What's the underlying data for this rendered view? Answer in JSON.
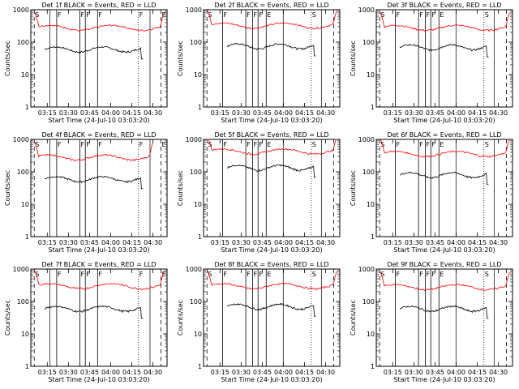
{
  "chart_data": [
    {
      "type": "line",
      "title": "Det 1f BLACK = Events, RED = LLD",
      "xlabel": "Start Time (24-Jul-10 03:03:20)",
      "ylabel": "Counts/sec",
      "xtick_labels": [
        "03:15",
        "03:30",
        "03:45",
        "04:00",
        "04:15",
        "04:30"
      ],
      "ytick_labels": [
        "1",
        "10",
        "100",
        "1000"
      ],
      "yscale": "log",
      "ylim": [
        1,
        1000
      ],
      "annotations": [
        "S",
        "F",
        "F",
        "F",
        "F",
        "F",
        "E",
        "S"
      ],
      "series": [
        {
          "name": "BLACK = Events",
          "color": "#000000",
          "start": "03:13",
          "end": "04:23",
          "mean": 60
        },
        {
          "name": "RED = LLD",
          "color": "#ff0000",
          "start": "03:06",
          "end": "04:38",
          "mean": 280
        }
      ]
    },
    {
      "type": "line",
      "title": "Det 2f BLACK = Events, RED = LLD",
      "xlabel": "Start Time (24-Jul-10 03:03:20)",
      "ylabel": "Counts/sec",
      "xtick_labels": [
        "03:15",
        "03:30",
        "03:45",
        "04:00",
        "04:15",
        "04:30"
      ],
      "ytick_labels": [
        "1",
        "10",
        "100",
        "1000"
      ],
      "yscale": "log",
      "ylim": [
        1,
        1000
      ],
      "annotations": [
        "S",
        "F",
        "F",
        "F",
        "F",
        "E",
        "S"
      ],
      "series": [
        {
          "name": "BLACK = Events",
          "color": "#000000",
          "start": "03:20",
          "end": "04:23",
          "mean": 75
        },
        {
          "name": "RED = LLD",
          "color": "#ff0000",
          "start": "03:06",
          "end": "04:38",
          "mean": 330
        }
      ]
    },
    {
      "type": "line",
      "title": "Det 3f BLACK = Events, RED = LLD",
      "xlabel": "Start Time (24-Jul-10 03:03:20)",
      "ylabel": "Counts/sec",
      "xtick_labels": [
        "03:15",
        "03:30",
        "03:45",
        "04:00",
        "04:15",
        "04:30"
      ],
      "ytick_labels": [
        "1",
        "10",
        "100",
        "1000"
      ],
      "yscale": "log",
      "ylim": [
        1,
        1000
      ],
      "annotations": [
        "S",
        "F",
        "F",
        "F",
        "F",
        "E",
        "S"
      ],
      "series": [
        {
          "name": "BLACK = Events",
          "color": "#000000",
          "start": "03:20",
          "end": "04:23",
          "mean": 70
        },
        {
          "name": "RED = LLD",
          "color": "#ff0000",
          "start": "03:06",
          "end": "04:38",
          "mean": 280
        }
      ]
    },
    {
      "type": "line",
      "title": "Det 4f BLACK = Events, RED = LLD",
      "xlabel": "Start Time (24-Jul-10 03:03:20)",
      "ylabel": "Counts/sec",
      "xtick_labels": [
        "03:15",
        "03:30",
        "03:45",
        "04:00",
        "04:15",
        "04:30"
      ],
      "ytick_labels": [
        "1",
        "10",
        "100",
        "1000"
      ],
      "yscale": "log",
      "ylim": [
        1,
        1000
      ],
      "annotations": [
        "S",
        "F",
        "F",
        "F",
        "F",
        "F",
        "E",
        "S"
      ],
      "series": [
        {
          "name": "BLACK = Events",
          "color": "#000000",
          "start": "03:13",
          "end": "04:23",
          "mean": 60
        },
        {
          "name": "RED = LLD",
          "color": "#ff0000",
          "start": "03:06",
          "end": "04:30",
          "mean": 280
        }
      ]
    },
    {
      "type": "line",
      "title": "Det 5f BLACK = Events, RED = LLD",
      "xlabel": "Start Time (24-Jul-10 03:03:20)",
      "ylabel": "Counts/sec",
      "xtick_labels": [
        "03:15",
        "03:30",
        "03:45",
        "04:00",
        "04:15",
        "04:30"
      ],
      "ytick_labels": [
        "1",
        "10",
        "100",
        "1000"
      ],
      "yscale": "log",
      "ylim": [
        1,
        1000
      ],
      "annotations": [
        "S",
        "F",
        "F",
        "F",
        "F",
        "E",
        "S"
      ],
      "series": [
        {
          "name": "BLACK = Events",
          "color": "#000000",
          "start": "03:20",
          "end": "04:23",
          "mean": 135
        },
        {
          "name": "RED = LLD",
          "color": "#ff0000",
          "start": "03:06",
          "end": "04:38",
          "mean": 430
        }
      ]
    },
    {
      "type": "line",
      "title": "Det 6f BLACK = Events, RED = LLD",
      "xlabel": "Start Time (24-Jul-10 03:03:20)",
      "ylabel": "Counts/sec",
      "xtick_labels": [
        "03:15",
        "03:30",
        "03:45",
        "04:00",
        "04:15",
        "04:30"
      ],
      "ytick_labels": [
        "1",
        "10",
        "100",
        "1000"
      ],
      "yscale": "log",
      "ylim": [
        1,
        1000
      ],
      "annotations": [
        "S",
        "F",
        "F",
        "F",
        "F",
        "E",
        "S"
      ],
      "series": [
        {
          "name": "BLACK = Events",
          "color": "#000000",
          "start": "03:20",
          "end": "04:23",
          "mean": 80
        },
        {
          "name": "RED = LLD",
          "color": "#ff0000",
          "start": "03:06",
          "end": "04:38",
          "mean": 360
        }
      ]
    },
    {
      "type": "line",
      "title": "Det 7f BLACK = Events, RED = LLD",
      "xlabel": "Start Time (24-Jul-10 03:03:20)",
      "ylabel": "Counts/sec",
      "xtick_labels": [
        "03:15",
        "03:30",
        "03:45",
        "04:00",
        "04:15",
        "04:30"
      ],
      "ytick_labels": [
        "1",
        "10",
        "100",
        "1000"
      ],
      "yscale": "log",
      "ylim": [
        1,
        1000
      ],
      "annotations": [
        "S",
        "F",
        "F",
        "F",
        "F",
        "F",
        "E",
        "S"
      ],
      "series": [
        {
          "name": "BLACK = Events",
          "color": "#000000",
          "start": "03:13",
          "end": "04:23",
          "mean": 60
        },
        {
          "name": "RED = LLD",
          "color": "#ff0000",
          "start": "03:06",
          "end": "04:38",
          "mean": 300
        }
      ]
    },
    {
      "type": "line",
      "title": "Det 8f BLACK = Events, RED = LLD",
      "xlabel": "Start Time (24-Jul-10 03:03:20)",
      "ylabel": "Counts/sec",
      "xtick_labels": [
        "03:15",
        "03:30",
        "03:45",
        "04:00",
        "04:15",
        "04:30"
      ],
      "ytick_labels": [
        "1",
        "10",
        "100",
        "1000"
      ],
      "yscale": "log",
      "ylim": [
        1,
        1000
      ],
      "annotations": [
        "S",
        "F",
        "F",
        "F",
        "F",
        "E",
        "S"
      ],
      "series": [
        {
          "name": "BLACK = Events",
          "color": "#000000",
          "start": "03:20",
          "end": "04:23",
          "mean": 70
        },
        {
          "name": "RED = LLD",
          "color": "#ff0000",
          "start": "03:06",
          "end": "04:38",
          "mean": 300
        }
      ]
    },
    {
      "type": "line",
      "title": "Det 9f BLACK = Events, RED = LLD",
      "xlabel": "Start Time (24-Jul-10 03:03:20)",
      "ylabel": "Counts/sec",
      "xtick_labels": [
        "03:15",
        "03:30",
        "03:45",
        "04:00",
        "04:15",
        "04:30"
      ],
      "ytick_labels": [
        "1",
        "10",
        "100",
        "1000"
      ],
      "yscale": "log",
      "ylim": [
        1,
        1000
      ],
      "annotations": [
        "S",
        "F",
        "F",
        "F",
        "F",
        "E",
        "S"
      ],
      "series": [
        {
          "name": "BLACK = Events",
          "color": "#000000",
          "start": "03:20",
          "end": "04:23",
          "mean": 60
        },
        {
          "name": "RED = LLD",
          "color": "#ff0000",
          "start": "03:06",
          "end": "04:38",
          "mean": 280
        }
      ]
    }
  ]
}
